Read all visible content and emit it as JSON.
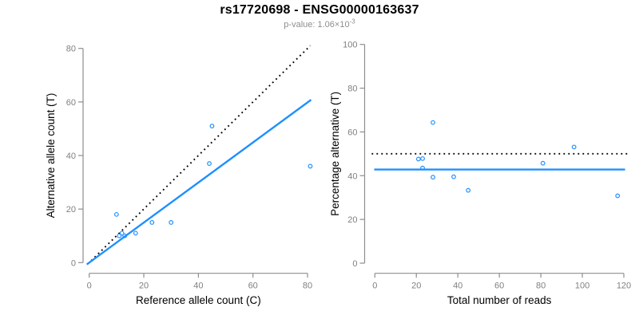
{
  "page": {
    "title": "rs17720698 - ENSG00000163637",
    "subtitle_prefix": "p-value: 1.06×10",
    "subtitle_exponent": "-3"
  },
  "colors": {
    "accent_blue": "#1E90FF",
    "reference_black": "#000000",
    "axis_line_gray": "#8e8e8e",
    "tick_label_gray": "#808080",
    "axis_title_black": "#000000"
  },
  "chart_data": [
    {
      "type": "scatter",
      "panel": "allele-counts",
      "xlabel": "Reference allele count (C)",
      "ylabel": "Alternative allele count (T)",
      "xlim": [
        0,
        80
      ],
      "ylim": [
        0,
        80
      ],
      "x_ticks": [
        0,
        20,
        40,
        60,
        80
      ],
      "y_ticks": [
        0,
        20,
        40,
        60,
        80
      ],
      "grid": false,
      "points": [
        [
          10,
          18
        ],
        [
          11,
          10
        ],
        [
          12,
          11
        ],
        [
          13,
          10
        ],
        [
          17,
          11
        ],
        [
          23,
          15
        ],
        [
          30,
          15
        ],
        [
          44,
          37
        ],
        [
          45,
          51
        ],
        [
          81,
          36
        ]
      ],
      "lines": [
        {
          "name": "identity-line",
          "style": "dotted",
          "color_key": "reference_black",
          "slope": 1,
          "intercept": 0,
          "x_range": [
            -0.5,
            81.0
          ]
        },
        {
          "name": "fit-line",
          "style": "solid",
          "color_key": "accent_blue",
          "slope": 0.748,
          "intercept": 0,
          "x_range": [
            -0.9,
            81.3
          ]
        }
      ]
    },
    {
      "type": "scatter",
      "panel": "percentage-vs-coverage",
      "xlabel": "Total number of reads",
      "ylabel": "Percentage alternative (T)",
      "xlim": [
        0,
        120
      ],
      "ylim": [
        0,
        100
      ],
      "x_ticks": [
        0,
        20,
        40,
        60,
        80,
        100,
        120
      ],
      "y_ticks": [
        0,
        20,
        40,
        60,
        80,
        100
      ],
      "grid": false,
      "points": [
        [
          28,
          64.3
        ],
        [
          21,
          47.6
        ],
        [
          23,
          47.8
        ],
        [
          23,
          43.5
        ],
        [
          28,
          39.3
        ],
        [
          38,
          39.5
        ],
        [
          45,
          33.3
        ],
        [
          81,
          45.7
        ],
        [
          96,
          53.1
        ],
        [
          117,
          30.8
        ]
      ],
      "lines": [
        {
          "name": "expected-50pct-line",
          "style": "dotted",
          "color_key": "reference_black",
          "slope": 0,
          "intercept": 50,
          "x_range": [
            -1.5,
            122.5
          ]
        },
        {
          "name": "mean-pct-line",
          "style": "solid",
          "color_key": "accent_blue",
          "slope": 0,
          "intercept": 42.8,
          "x_range": [
            -0.3,
            120.6
          ]
        }
      ]
    }
  ]
}
